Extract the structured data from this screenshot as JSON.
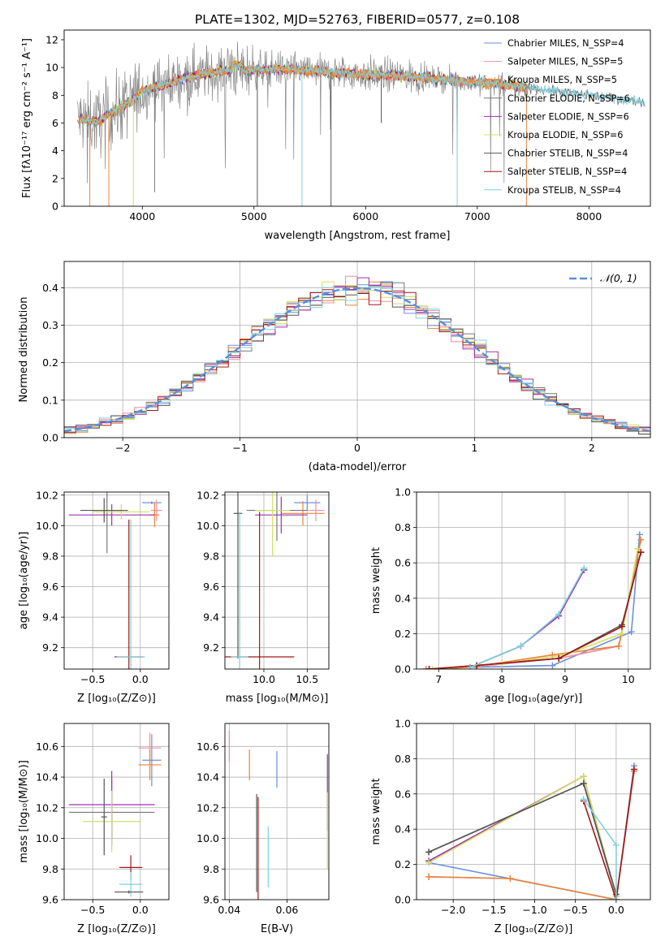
{
  "colors": [
    "#6b8fdc",
    "#f08fa0",
    "#e8833a",
    "#777777",
    "#a030b0",
    "#d0e060",
    "#555555",
    "#a01818",
    "#80d0dc"
  ],
  "figure": {
    "title": "PLATE=1302, MJD=52763, FIBERID=0577, z=0.108"
  },
  "chart_data": [
    {
      "id": "spectrum",
      "type": "line",
      "xlabel": "wavelength [Angstrom, rest frame]",
      "ylabel": "Flux [fλ10⁻¹⁷ erg cm⁻² s⁻¹ A⁻¹]",
      "xlim": [
        3300,
        8550
      ],
      "ylim": [
        0,
        12.7
      ],
      "xticks": [
        4000,
        5000,
        6000,
        7000,
        8000
      ],
      "xticklabels": [
        "4000",
        "5000",
        "6000",
        "7000",
        "8000"
      ],
      "yticks": [
        0,
        2,
        4,
        6,
        8,
        10,
        12
      ],
      "yticklabels": [
        "0",
        "2",
        "4",
        "6",
        "8",
        "10",
        "12"
      ],
      "grid": false,
      "legend": "upper right",
      "legend_entries": [
        "Chabrier MILES, N_SSP=4",
        "Salpeter MILES, N_SSP=5",
        "Kroupa MILES, N_SSP=5",
        "Chabrier ELODIE, N_SSP=6",
        "Salpeter ELODIE, N_SSP=6",
        "Kroupa ELODIE, N_SSP=6",
        "Chabrier STELIB, N_SSP=4",
        "Salpeter STELIB, N_SSP=4",
        "Kroupa STELIB, N_SSP=4"
      ],
      "continuum": [
        [
          3420,
          6.3
        ],
        [
          3600,
          6.1
        ],
        [
          3700,
          6.6
        ],
        [
          3900,
          7.6
        ],
        [
          4000,
          8.3
        ],
        [
          4200,
          8.8
        ],
        [
          4400,
          9.3
        ],
        [
          4600,
          9.6
        ],
        [
          4800,
          9.8
        ],
        [
          5000,
          9.8
        ],
        [
          5200,
          9.9
        ],
        [
          5400,
          9.8
        ],
        [
          5600,
          9.7
        ],
        [
          5800,
          9.6
        ],
        [
          6000,
          9.5
        ],
        [
          6300,
          9.4
        ],
        [
          6600,
          9.2
        ],
        [
          6900,
          9.0
        ],
        [
          7200,
          8.8
        ],
        [
          7400,
          8.6
        ],
        [
          7700,
          8.3
        ],
        [
          8000,
          8.0
        ],
        [
          8300,
          7.7
        ],
        [
          8500,
          7.5
        ]
      ]
    },
    {
      "id": "residuals",
      "type": "histogram",
      "xlabel": "(data-model)/error",
      "ylabel": "Normed distribution",
      "xlim": [
        -2.5,
        2.5
      ],
      "ylim": [
        0,
        0.47
      ],
      "xticks": [
        -2,
        -1,
        0,
        1,
        2
      ],
      "xticklabels": [
        "−2",
        "−1",
        "0",
        "1",
        "2"
      ],
      "yticks": [
        0,
        0.1,
        0.2,
        0.3,
        0.4
      ],
      "yticklabels": [
        "0.0",
        "0.1",
        "0.2",
        "0.3",
        "0.4"
      ],
      "grid": true,
      "legend": "upper right",
      "legend_entries": [
        "𝒩(0, 1)"
      ],
      "bin_width": 0.1,
      "range": [
        -2.5,
        2.5
      ]
    },
    {
      "id": "age_vs_Z",
      "type": "errorbar",
      "xlabel": "Z [log₁₀(Z/Z⊙)]",
      "ylabel": "age  [log₁₀(age/yr)]",
      "xlim": [
        -0.8,
        0.3
      ],
      "ylim": [
        9.06,
        10.22
      ],
      "xticks": [
        -0.5,
        0.0
      ],
      "xticklabels": [
        "−0.5",
        "0.0"
      ],
      "yticks": [
        9.2,
        9.4,
        9.6,
        9.8,
        10.0,
        10.2
      ],
      "yticklabels": [
        "9.2",
        "9.4",
        "9.6",
        "9.8",
        "10.0",
        "10.2"
      ],
      "grid": true,
      "points": [
        {
          "x": 0.12,
          "xerr": 0.1,
          "y": 10.15,
          "yerr": 0.01,
          "c": 0
        },
        {
          "x": 0.17,
          "xerr": 0.06,
          "y": 10.1,
          "yerr": 0.07,
          "c": 1
        },
        {
          "x": 0.15,
          "xerr": 0.05,
          "y": 10.07,
          "yerr": 0.08,
          "c": 2
        },
        {
          "x": -0.35,
          "xerr": 0.15,
          "y": 10.1,
          "yerr": 0.28,
          "c": 3
        },
        {
          "x": -0.3,
          "xerr": 0.45,
          "y": 10.07,
          "yerr": 0.07,
          "c": 4
        },
        {
          "x": -0.2,
          "xerr": 0.3,
          "y": 10.09,
          "yerr": 0.05,
          "c": 5
        },
        {
          "x": -0.38,
          "xerr": 0.25,
          "y": 10.1,
          "yerr": 0.08,
          "c": 6
        },
        {
          "x": -0.12,
          "xerr": 0.15,
          "y": 9.14,
          "yerr": 0.9,
          "c": 7
        },
        {
          "x": -0.1,
          "xerr": 0.15,
          "y": 9.14,
          "yerr": 0.9,
          "c": 8
        }
      ]
    },
    {
      "id": "age_vs_mass",
      "type": "errorbar",
      "xlabel": "mass [log₁₀(M/M⊙)]",
      "ylabel": "",
      "xlim": [
        9.55,
        10.75
      ],
      "ylim": [
        9.06,
        10.22
      ],
      "xticks": [
        10.0,
        10.5
      ],
      "xticklabels": [
        "10.0",
        "10.5"
      ],
      "yticks": [
        9.2,
        9.4,
        9.6,
        9.8,
        10.0,
        10.2
      ],
      "yticklabels": [
        "9.2",
        "9.4",
        "9.6",
        "9.8",
        "10.0",
        "10.2"
      ],
      "grid": true,
      "points": [
        {
          "x": 10.5,
          "xerr": 0.15,
          "y": 10.15,
          "yerr": 0.05,
          "c": 0
        },
        {
          "x": 10.6,
          "xerr": 0.1,
          "y": 10.1,
          "yerr": 0.07,
          "c": 1
        },
        {
          "x": 10.45,
          "xerr": 0.25,
          "y": 10.08,
          "yerr": 0.08,
          "c": 2
        },
        {
          "x": 10.15,
          "xerr": 0.35,
          "y": 10.1,
          "yerr": 0.2,
          "c": 3
        },
        {
          "x": 10.2,
          "xerr": 0.3,
          "y": 10.07,
          "yerr": 0.12,
          "c": 4
        },
        {
          "x": 10.1,
          "xerr": 0.2,
          "y": 10.1,
          "yerr": 0.3,
          "c": 5
        },
        {
          "x": 9.7,
          "xerr": 0.05,
          "y": 10.08,
          "yerr": 0.95,
          "c": 6
        },
        {
          "x": 9.95,
          "xerr": 0.4,
          "y": 9.14,
          "yerr": 0.95,
          "c": 7
        },
        {
          "x": 9.72,
          "xerr": 0.1,
          "y": 9.14,
          "yerr": 0.95,
          "c": 8
        }
      ]
    },
    {
      "id": "weight_vs_age",
      "type": "line",
      "xlabel": "age  [log₁₀(age/yr)]",
      "ylabel": "mass weight",
      "xlim": [
        6.65,
        10.35
      ],
      "ylim": [
        0,
        1.0
      ],
      "xticks": [
        7,
        8,
        9,
        10
      ],
      "xticklabels": [
        "7",
        "8",
        "9",
        "10"
      ],
      "yticks": [
        0,
        0.2,
        0.4,
        0.6,
        0.8,
        1.0
      ],
      "yticklabels": [
        "0.0",
        "0.2",
        "0.4",
        "0.6",
        "0.8",
        "1.0"
      ],
      "grid": true,
      "series": [
        {
          "c": 0,
          "x": [
            6.8,
            7.5,
            8.8,
            10.05,
            10.18
          ],
          "y": [
            0.0,
            0.01,
            0.02,
            0.21,
            0.76
          ]
        },
        {
          "c": 1,
          "x": [
            6.85,
            7.5,
            8.9,
            9.85,
            10.2
          ],
          "y": [
            0.0,
            0.01,
            0.06,
            0.13,
            0.73
          ]
        },
        {
          "c": 2,
          "x": [
            6.8,
            7.5,
            8.8,
            9.85,
            10.2
          ],
          "y": [
            0.0,
            0.01,
            0.08,
            0.13,
            0.73
          ]
        },
        {
          "c": 3,
          "x": [
            7.5,
            8.3,
            8.9,
            9.3
          ],
          "y": [
            0.01,
            0.13,
            0.3,
            0.56
          ]
        },
        {
          "c": 4,
          "x": [
            7.5,
            8.3,
            8.9,
            9.3
          ],
          "y": [
            0.01,
            0.13,
            0.3,
            0.56
          ]
        },
        {
          "c": 5,
          "x": [
            6.9,
            8.0,
            9.0,
            9.9,
            10.15
          ],
          "y": [
            0.0,
            0.03,
            0.08,
            0.2,
            0.68
          ]
        },
        {
          "c": 6,
          "x": [
            6.85,
            7.6,
            8.9,
            9.9,
            10.2
          ],
          "y": [
            0.0,
            0.02,
            0.06,
            0.25,
            0.66
          ]
        },
        {
          "c": 7,
          "x": [
            6.85,
            7.6,
            8.9,
            9.9,
            10.2
          ],
          "y": [
            0.0,
            0.02,
            0.06,
            0.24,
            0.66
          ]
        },
        {
          "c": 8,
          "x": [
            7.5,
            8.3,
            8.9,
            9.3
          ],
          "y": [
            0.01,
            0.13,
            0.31,
            0.57
          ]
        }
      ]
    },
    {
      "id": "mass_vs_Z",
      "type": "errorbar",
      "xlabel": "Z [log₁₀(Z/Z⊙)]",
      "ylabel": "mass [log₁₀(M/M⊙)]",
      "xlim": [
        -0.8,
        0.3
      ],
      "ylim": [
        9.6,
        10.75
      ],
      "xticks": [
        -0.5,
        0.0
      ],
      "xticklabels": [
        "−0.5",
        "0.0"
      ],
      "yticks": [
        9.6,
        9.8,
        10.0,
        10.2,
        10.4,
        10.6
      ],
      "yticklabels": [
        "9.6",
        "9.8",
        "10.0",
        "10.2",
        "10.4",
        "10.6"
      ],
      "grid": true,
      "points": [
        {
          "x": 0.12,
          "xerr": 0.1,
          "y": 10.51,
          "yerr": 0.17,
          "c": 0
        },
        {
          "x": 0.1,
          "xerr": 0.12,
          "y": 10.59,
          "yerr": 0.1,
          "c": 1
        },
        {
          "x": 0.1,
          "xerr": 0.12,
          "y": 10.48,
          "yerr": 0.1,
          "c": 2
        },
        {
          "x": -0.3,
          "xerr": 0.45,
          "y": 10.17,
          "yerr": 0.22,
          "c": 3
        },
        {
          "x": -0.3,
          "xerr": 0.45,
          "y": 10.22,
          "yerr": 0.22,
          "c": 4
        },
        {
          "x": -0.3,
          "xerr": 0.3,
          "y": 10.11,
          "yerr": 0.2,
          "c": 5
        },
        {
          "x": -0.38,
          "xerr": 0.03,
          "y": 10.14,
          "yerr": 0.25,
          "c": 6
        },
        {
          "x": -0.1,
          "xerr": 0.12,
          "y": 9.81,
          "yerr": 0.08,
          "c": 7
        },
        {
          "x": -0.1,
          "xerr": 0.12,
          "y": 9.7,
          "yerr": 0.08,
          "c": 8
        },
        {
          "x": -0.12,
          "xerr": 0.15,
          "y": 9.65,
          "yerr": 0.01,
          "c": 6
        }
      ]
    },
    {
      "id": "mass_vs_EBV",
      "type": "errorbar",
      "xlabel": "E(B-V)",
      "ylabel": "",
      "xlim": [
        0.0385,
        0.0745
      ],
      "ylim": [
        9.6,
        10.75
      ],
      "xticks": [
        0.04,
        0.06
      ],
      "xticklabels": [
        "0.04",
        "0.06"
      ],
      "yticks": [
        9.6,
        9.8,
        10.0,
        10.2,
        10.4,
        10.6
      ],
      "yticklabels": [
        "9.6",
        "9.8",
        "10.0",
        "10.2",
        "10.4",
        "10.6"
      ],
      "grid": true,
      "points": [
        {
          "x": 0.0565,
          "xerr": 0,
          "y": 10.45,
          "yerr": 0.12,
          "c": 0
        },
        {
          "x": 0.04,
          "xerr": 0,
          "y": 10.6,
          "yerr": 0.1,
          "c": 1
        },
        {
          "x": 0.047,
          "xerr": 0,
          "y": 10.48,
          "yerr": 0.1,
          "c": 2
        },
        {
          "x": 0.074,
          "xerr": 0,
          "y": 10.3,
          "yerr": 0.25,
          "c": 4
        },
        {
          "x": 0.074,
          "xerr": 0,
          "y": 10.05,
          "yerr": 0.25,
          "c": 5
        },
        {
          "x": 0.0495,
          "xerr": 0,
          "y": 9.97,
          "yerr": 0.32,
          "c": 6
        },
        {
          "x": 0.05,
          "xerr": 0,
          "y": 9.92,
          "yerr": 0.35,
          "c": 7
        },
        {
          "x": 0.0535,
          "xerr": 0,
          "y": 9.88,
          "yerr": 0.2,
          "c": 8
        }
      ]
    },
    {
      "id": "weight_vs_Z",
      "type": "line",
      "xlabel": "Z [log₁₀(Z/Z⊙)]",
      "ylabel": "mass weight",
      "xlim": [
        -2.45,
        0.42
      ],
      "ylim": [
        0,
        1.0
      ],
      "xticks": [
        -2.0,
        -1.5,
        -1.0,
        -0.5,
        0.0
      ],
      "xticklabels": [
        "−2.0",
        "−1.5",
        "−1.0",
        "−0.5",
        "0.0"
      ],
      "yticks": [
        0,
        0.2,
        0.4,
        0.6,
        0.8,
        1.0
      ],
      "yticklabels": [
        "0.0",
        "0.2",
        "0.4",
        "0.6",
        "0.8",
        "1.0"
      ],
      "grid": true,
      "series": [
        {
          "c": 0,
          "x": [
            -2.3,
            0.0,
            0.22
          ],
          "y": [
            0.21,
            0.0,
            0.76
          ]
        },
        {
          "c": 1,
          "x": [
            -2.3,
            -1.3,
            0.0,
            0.22
          ],
          "y": [
            0.13,
            0.12,
            0.0,
            0.73
          ]
        },
        {
          "c": 2,
          "x": [
            -2.3,
            -1.3,
            0.0,
            0.22
          ],
          "y": [
            0.13,
            0.12,
            0.0,
            0.73
          ]
        },
        {
          "c": 3,
          "x": [
            -2.3,
            -0.4,
            0.0
          ],
          "y": [
            0.27,
            0.66,
            0.02
          ]
        },
        {
          "c": 4,
          "x": [
            -2.3,
            -0.4,
            0.0
          ],
          "y": [
            0.22,
            0.7,
            0.02
          ]
        },
        {
          "c": 5,
          "x": [
            -2.3,
            -0.4,
            0.0
          ],
          "y": [
            0.21,
            0.7,
            0.02
          ]
        },
        {
          "c": 6,
          "x": [
            -2.3,
            -0.4,
            0.0
          ],
          "y": [
            0.27,
            0.66,
            0.03
          ]
        },
        {
          "c": 7,
          "x": [
            -0.4,
            0.0,
            0.22
          ],
          "y": [
            0.56,
            0.0,
            0.74
          ]
        },
        {
          "c": 8,
          "x": [
            -0.4,
            0.0,
            0.0
          ],
          "y": [
            0.57,
            0.31,
            0.0
          ]
        }
      ]
    }
  ]
}
